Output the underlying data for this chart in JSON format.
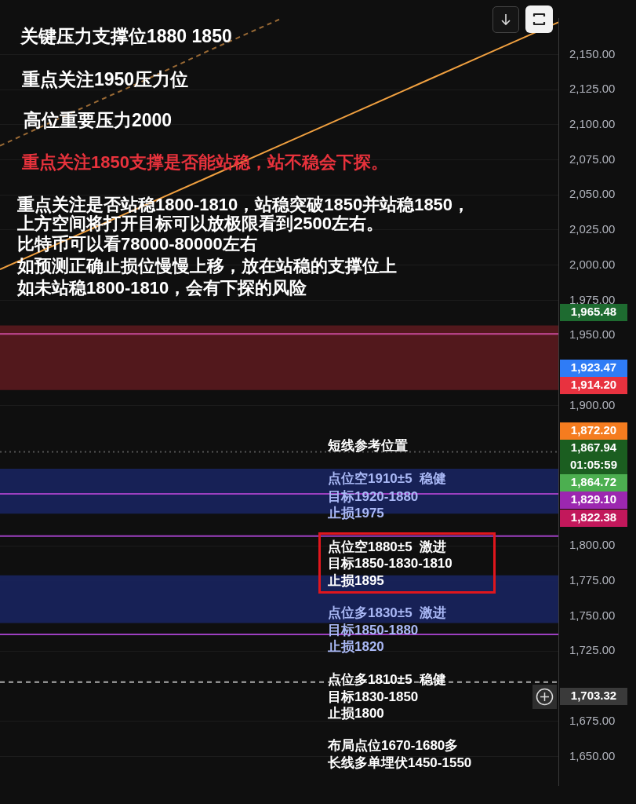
{
  "chart_data": {
    "type": "line",
    "categories": [
      null,
      null,
      null,
      null,
      null,
      null,
      null,
      null,
      null
    ],
    "series": [
      {
        "color": "#f0a040",
        "values": [
          1997,
          2019,
          2041,
          2063,
          2085,
          2107,
          2129,
          2151,
          2173
        ]
      },
      {
        "color": "#9a6a35",
        "line_style": "dashed",
        "values": [
          2085,
          2108,
          2130,
          2153,
          2175,
          null,
          null,
          null,
          null
        ]
      }
    ],
    "ylim": [
      1629,
      2176
    ],
    "yticks": [
      {
        "value": 2150,
        "label": "2,150.00"
      },
      {
        "value": 2125,
        "label": "2,125.00"
      },
      {
        "value": 2100,
        "label": "2,100.00"
      },
      {
        "value": 2075,
        "label": "2,075.00"
      },
      {
        "value": 2050,
        "label": "2,050.00"
      },
      {
        "value": 2025,
        "label": "2,025.00"
      },
      {
        "value": 2000,
        "label": "2,000.00"
      },
      {
        "value": 1975,
        "label": "1,975.00"
      },
      {
        "value": 1950,
        "label": "1,950.00"
      },
      {
        "value": 1900,
        "label": "1,900.00"
      },
      {
        "value": 1800,
        "label": "1,800.00"
      },
      {
        "value": 1775,
        "label": "1,775.00"
      },
      {
        "value": 1750,
        "label": "1,750.00"
      },
      {
        "value": 1725,
        "label": "1,725.00"
      },
      {
        "value": 1675,
        "label": "1,675.00"
      },
      {
        "value": 1650,
        "label": "1,650.00"
      }
    ],
    "tick_labels": "y",
    "grid": "y",
    "legend": false,
    "marker": "none",
    "bands": [
      {
        "axis": "y",
        "from": 1911,
        "to": 1957,
        "color": "#5a1a1e"
      },
      {
        "axis": "y",
        "from": 1823,
        "to": 1855,
        "color": "#18245e"
      },
      {
        "axis": "y",
        "from": 1745,
        "to": 1779,
        "color": "#18245e"
      }
    ],
    "ref_lines": [
      {
        "axis": "y",
        "value": 1951,
        "color": "#c84a9a"
      },
      {
        "axis": "y",
        "value": 1867,
        "color": "#555555",
        "line_style": "dotted"
      },
      {
        "axis": "y",
        "value": 1837,
        "color": "#9c3fc0"
      },
      {
        "axis": "y",
        "value": 1807,
        "color": "#9c3fc0"
      },
      {
        "axis": "y",
        "value": 1737,
        "color": "#9c3fc0"
      },
      {
        "axis": "y",
        "value": 1703,
        "color": "#aaaaaa",
        "line_style": "dashed"
      }
    ],
    "annotations": [
      "关键压力支撑位1880 1850",
      "重点关注1950压力位",
      "高位重要压力2000",
      "重点关注1850支撑是否能站稳，站不稳会下探。",
      "重点关注是否站稳1800-1810，站稳突破1850并站稳1850，",
      "上方空间将打开目标可以放极限看到2500左右。",
      "比特币可以看78000-80000左右",
      "如预测正确止损位慢慢上移，放在站稳的支撑位上",
      "如未站稳1800-1810，会有下探的风险",
      "短线参考位置",
      "点位空1910±5  稳健",
      "目标1920-1880",
      "止损1975",
      "点位空1880±5  激进",
      "目标1850-1830-1810",
      "止损1895",
      "点位多1830±5  激进",
      "目标1850-1880",
      "止损1820",
      "点位多1810±5  稳健",
      "目标1830-1850",
      "止损1800",
      "布局点位1670-1680多",
      "长线多单埋伏1450-1550",
      "1,965.48",
      "1,923.47",
      "1,914.20",
      "1,872.20",
      "1,867.94\n01:05:59",
      "1,864.72",
      "1,829.10",
      "1,822.38",
      "1,703.32"
    ]
  }
}
